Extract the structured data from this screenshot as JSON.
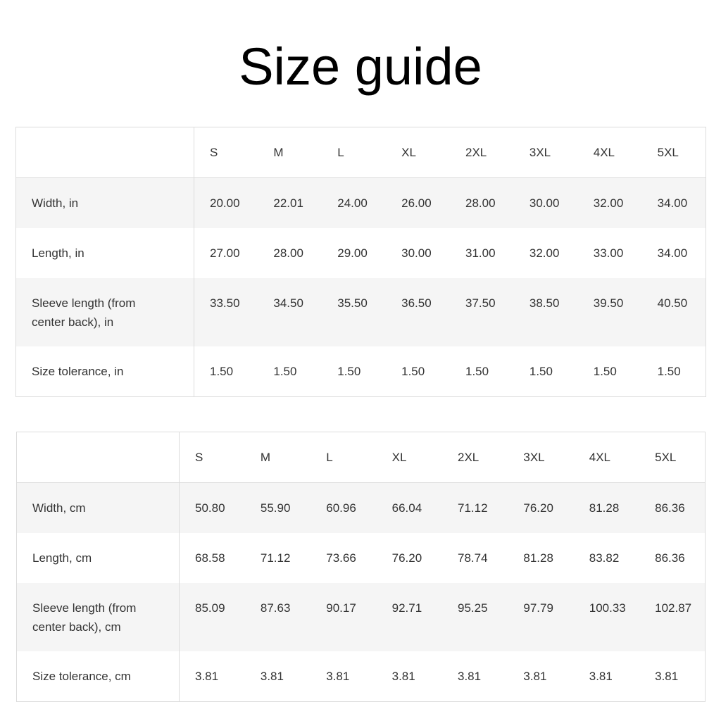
{
  "title": "Size guide",
  "tables": [
    {
      "sizes": [
        "S",
        "M",
        "L",
        "XL",
        "2XL",
        "3XL",
        "4XL",
        "5XL"
      ],
      "rows": [
        {
          "label": "Width, in",
          "values": [
            "20.00",
            "22.01",
            "24.00",
            "26.00",
            "28.00",
            "30.00",
            "32.00",
            "34.00"
          ]
        },
        {
          "label": "Length, in",
          "values": [
            "27.00",
            "28.00",
            "29.00",
            "30.00",
            "31.00",
            "32.00",
            "33.00",
            "34.00"
          ]
        },
        {
          "label": "Sleeve length (from center back), in",
          "values": [
            "33.50",
            "34.50",
            "35.50",
            "36.50",
            "37.50",
            "38.50",
            "39.50",
            "40.50"
          ]
        },
        {
          "label": "Size tolerance, in",
          "values": [
            "1.50",
            "1.50",
            "1.50",
            "1.50",
            "1.50",
            "1.50",
            "1.50",
            "1.50"
          ]
        }
      ]
    },
    {
      "sizes": [
        "S",
        "M",
        "L",
        "XL",
        "2XL",
        "3XL",
        "4XL",
        "5XL"
      ],
      "rows": [
        {
          "label": "Width, cm",
          "values": [
            "50.80",
            "55.90",
            "60.96",
            "66.04",
            "71.12",
            "76.20",
            "81.28",
            "86.36"
          ]
        },
        {
          "label": "Length, cm",
          "values": [
            "68.58",
            "71.12",
            "73.66",
            "76.20",
            "78.74",
            "81.28",
            "83.82",
            "86.36"
          ]
        },
        {
          "label": "Sleeve length (from center back), cm",
          "values": [
            "85.09",
            "87.63",
            "90.17",
            "92.71",
            "95.25",
            "97.79",
            "100.33",
            "102.87"
          ]
        },
        {
          "label": "Size tolerance, cm",
          "values": [
            "3.81",
            "3.81",
            "3.81",
            "3.81",
            "3.81",
            "3.81",
            "3.81",
            "3.81"
          ]
        }
      ]
    }
  ]
}
